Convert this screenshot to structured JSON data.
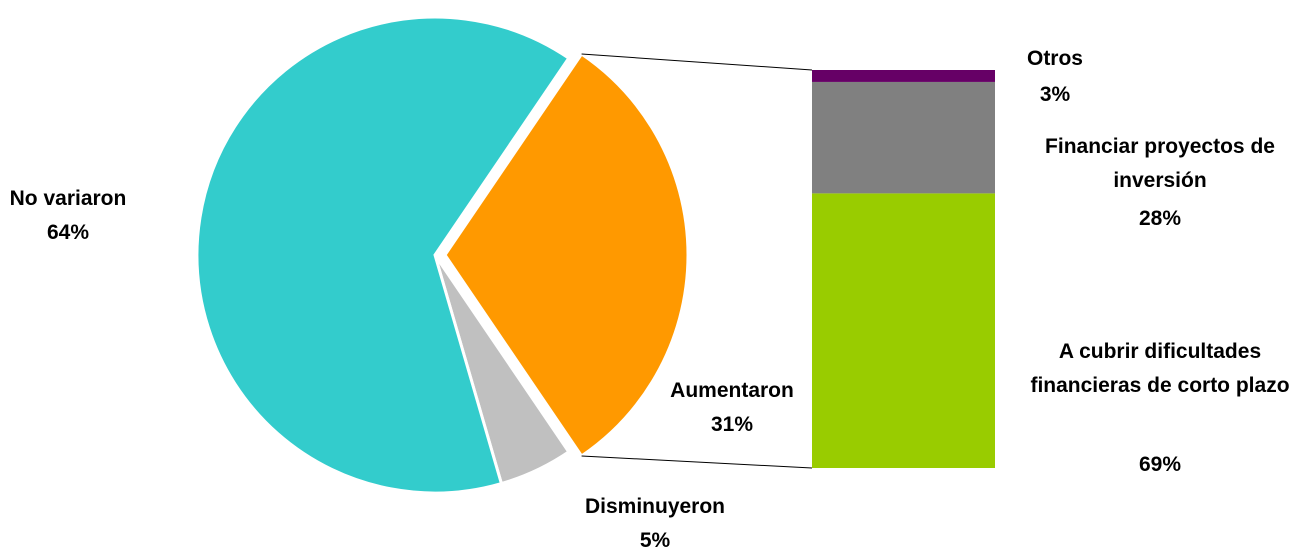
{
  "chart_data": [
    {
      "type": "pie",
      "categories": [
        "Aumentaron",
        "Disminuyeron",
        "No variaron"
      ],
      "values": [
        31,
        5,
        64
      ],
      "value_labels": [
        "31%",
        "5%",
        "64%"
      ],
      "colors": [
        "#ff9900",
        "#c0c0c0",
        "#33cccc"
      ]
    },
    {
      "type": "stacked_bar",
      "detail_of": "Aumentaron",
      "categories": [
        "A cubrir dificultades financieras de corto plazo",
        "Financiar proyectos de inversión",
        "Otros"
      ],
      "values": [
        69,
        28,
        3
      ],
      "value_labels": [
        "69%",
        "28%",
        "3%"
      ],
      "colors": [
        "#99cc00",
        "#808080",
        "#660066"
      ]
    }
  ]
}
